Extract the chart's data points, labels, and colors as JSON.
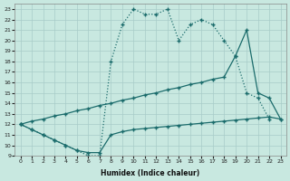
{
  "xlabel": "Humidex (Indice chaleur)",
  "bg_color": "#c8e8e0",
  "line_color": "#1a6b6b",
  "grid_color": "#a8ccc8",
  "xlim": [
    -0.5,
    23.5
  ],
  "ylim": [
    9,
    23.5
  ],
  "yticks": [
    9,
    10,
    11,
    12,
    13,
    14,
    15,
    16,
    17,
    18,
    19,
    20,
    21,
    22,
    23
  ],
  "xticks": [
    0,
    1,
    2,
    3,
    4,
    5,
    6,
    7,
    8,
    9,
    10,
    11,
    12,
    13,
    14,
    15,
    16,
    17,
    18,
    19,
    20,
    21,
    22,
    23
  ],
  "line1_x": [
    0,
    1,
    2,
    3,
    4,
    5,
    6,
    7,
    8,
    9,
    10,
    11,
    12,
    13,
    14,
    15,
    16,
    17,
    18,
    19,
    20,
    21,
    22
  ],
  "line1_y": [
    12,
    11.5,
    11,
    10.5,
    10,
    9.5,
    9,
    9,
    18,
    21.5,
    23,
    22.5,
    22.5,
    23,
    20,
    21.5,
    22,
    21.5,
    20,
    18.5,
    15,
    14.5,
    12.5
  ],
  "line2_x": [
    0,
    1,
    2,
    3,
    4,
    5,
    6,
    7,
    8,
    9,
    10,
    11,
    12,
    13,
    14,
    15,
    16,
    17,
    18,
    19,
    20,
    21,
    22,
    23
  ],
  "line2_y": [
    12,
    12.3,
    12.5,
    12.8,
    13.0,
    13.3,
    13.5,
    13.8,
    14.0,
    14.3,
    14.5,
    14.8,
    15.0,
    15.3,
    15.5,
    15.8,
    16.0,
    16.3,
    16.5,
    18.5,
    21,
    15,
    14.5,
    12.5
  ],
  "line3_x": [
    0,
    1,
    2,
    3,
    4,
    5,
    6,
    7,
    8,
    9,
    10,
    11,
    12,
    13,
    14,
    15,
    16,
    17,
    18,
    19,
    20,
    21,
    22,
    23
  ],
  "line3_y": [
    12,
    11.5,
    11,
    10.5,
    10,
    9.5,
    9.3,
    9.3,
    11.0,
    11.3,
    11.5,
    11.6,
    11.7,
    11.8,
    11.9,
    12.0,
    12.1,
    12.2,
    12.3,
    12.4,
    12.5,
    12.6,
    12.7,
    12.5
  ]
}
